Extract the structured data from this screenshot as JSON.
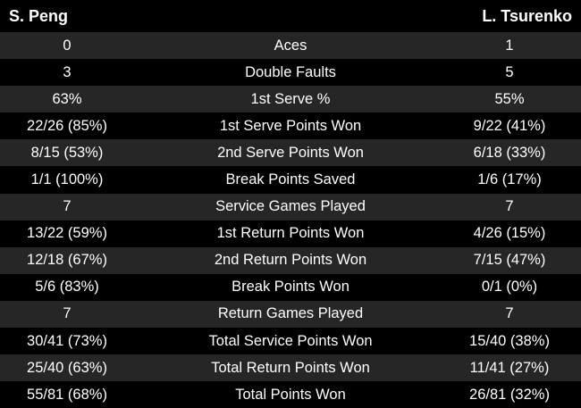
{
  "header": {
    "player1": "S. Peng",
    "player2": "L. Tsurenko"
  },
  "stats": [
    {
      "p1": "0",
      "label": "Aces",
      "p2": "1"
    },
    {
      "p1": "3",
      "label": "Double Faults",
      "p2": "5"
    },
    {
      "p1": "63%",
      "label": "1st Serve %",
      "p2": "55%"
    },
    {
      "p1": "22/26 (85%)",
      "label": "1st Serve Points Won",
      "p2": "9/22 (41%)"
    },
    {
      "p1": "8/15 (53%)",
      "label": "2nd Serve Points Won",
      "p2": "6/18 (33%)"
    },
    {
      "p1": "1/1 (100%)",
      "label": "Break Points Saved",
      "p2": "1/6 (17%)"
    },
    {
      "p1": "7",
      "label": "Service Games Played",
      "p2": "7"
    },
    {
      "p1": "13/22 (59%)",
      "label": "1st Return Points Won",
      "p2": "4/26 (15%)"
    },
    {
      "p1": "12/18 (67%)",
      "label": "2nd Return Points Won",
      "p2": "7/15 (47%)"
    },
    {
      "p1": "5/6 (83%)",
      "label": "Break Points Won",
      "p2": "0/1 (0%)"
    },
    {
      "p1": "7",
      "label": "Return Games Played",
      "p2": "7"
    },
    {
      "p1": "30/41 (73%)",
      "label": "Total Service Points Won",
      "p2": "15/40 (38%)"
    },
    {
      "p1": "25/40 (63%)",
      "label": "Total Return Points Won",
      "p2": "11/41 (27%)"
    },
    {
      "p1": "55/81 (68%)",
      "label": "Total Points Won",
      "p2": "26/81 (32%)"
    }
  ],
  "colors": {
    "background": "#000000",
    "row_stripe": "#262626",
    "text": "#ffffff"
  }
}
